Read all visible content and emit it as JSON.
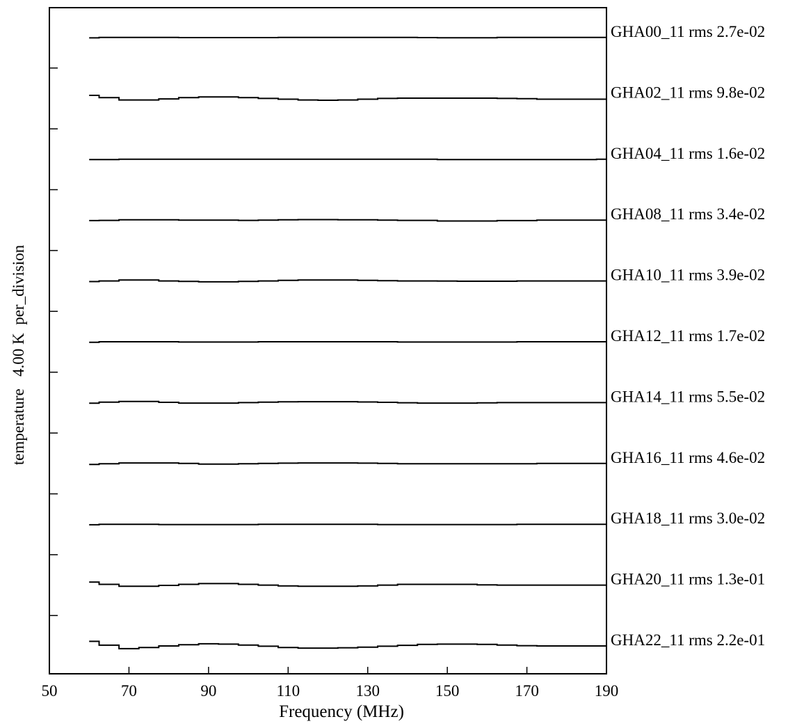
{
  "chart_data": {
    "type": "line",
    "title": "",
    "xlabel": "Frequency (MHz)",
    "ylabel": "temperature   4.00 K  per_division",
    "xlim": [
      50,
      190
    ],
    "x_ticks": [
      50,
      70,
      90,
      110,
      130,
      150,
      170,
      190
    ],
    "y_scale_K_per_division": 4.0,
    "grid": false,
    "legend": "right-side labels per trace",
    "line_color": "#000000",
    "x": [
      60,
      65,
      70,
      75,
      80,
      85,
      90,
      95,
      100,
      105,
      110,
      115,
      120,
      125,
      130,
      135,
      140,
      145,
      150,
      155,
      160,
      165,
      170,
      175,
      180,
      185,
      190
    ],
    "series": [
      {
        "name": "GHA00_11 rms 2.7e-02",
        "values": [
          -0.02,
          0.01,
          0.01,
          0.01,
          0.01,
          0.0,
          0.0,
          0.0,
          0.0,
          0.0,
          0.01,
          0.01,
          0.01,
          0.01,
          0.01,
          0.01,
          0.01,
          0.0,
          -0.01,
          -0.01,
          -0.01,
          0.01,
          0.01,
          0.01,
          0.01,
          0.01,
          0.01
        ]
      },
      {
        "name": "GHA02_11 rms 9.8e-02",
        "values": [
          0.2,
          0.05,
          -0.1,
          -0.1,
          -0.03,
          0.05,
          0.1,
          0.1,
          0.05,
          0.0,
          -0.05,
          -0.1,
          -0.12,
          -0.1,
          -0.05,
          0.0,
          0.02,
          0.02,
          0.02,
          0.02,
          0.02,
          0.0,
          -0.02,
          -0.05,
          -0.05,
          -0.05,
          -0.05
        ]
      },
      {
        "name": "GHA04_11 rms 1.6e-02",
        "values": [
          -0.02,
          -0.02,
          0.0,
          0.0,
          0.0,
          0.0,
          0.0,
          0.0,
          0.0,
          0.0,
          0.0,
          0.0,
          0.0,
          0.0,
          0.0,
          0.0,
          0.0,
          0.0,
          -0.02,
          -0.02,
          -0.02,
          -0.02,
          -0.02,
          -0.02,
          -0.02,
          -0.02,
          0.0
        ]
      },
      {
        "name": "GHA08_11 rms 3.4e-02",
        "values": [
          -0.03,
          -0.02,
          0.02,
          0.02,
          0.02,
          0.0,
          0.0,
          0.0,
          -0.02,
          0.0,
          0.02,
          0.03,
          0.03,
          0.02,
          0.02,
          0.0,
          -0.02,
          -0.02,
          -0.06,
          -0.06,
          -0.06,
          -0.03,
          -0.03,
          0.0,
          0.0,
          0.0,
          0.0
        ]
      },
      {
        "name": "GHA10_11 rms 3.9e-02",
        "values": [
          -0.04,
          0.0,
          0.06,
          0.06,
          0.0,
          -0.03,
          -0.06,
          -0.06,
          -0.03,
          0.0,
          0.04,
          0.06,
          0.06,
          0.06,
          0.04,
          0.02,
          0.0,
          0.0,
          -0.01,
          -0.02,
          -0.02,
          -0.02,
          0.0,
          0.0,
          0.0,
          0.0,
          0.0
        ]
      },
      {
        "name": "GHA12_11 rms 1.7e-02",
        "values": [
          -0.03,
          0.0,
          0.0,
          0.0,
          0.0,
          -0.02,
          -0.02,
          -0.02,
          -0.02,
          0.0,
          0.0,
          0.0,
          0.0,
          0.0,
          0.0,
          0.0,
          -0.02,
          -0.02,
          -0.02,
          -0.02,
          -0.02,
          -0.02,
          0.0,
          0.0,
          0.0,
          0.0,
          0.0
        ]
      },
      {
        "name": "GHA14_11 rms 5.5e-02",
        "values": [
          -0.04,
          0.03,
          0.08,
          0.08,
          0.02,
          -0.03,
          -0.03,
          -0.03,
          0.0,
          0.03,
          0.05,
          0.06,
          0.06,
          0.06,
          0.04,
          0.02,
          -0.01,
          -0.03,
          -0.03,
          -0.03,
          -0.02,
          0.0,
          0.0,
          0.0,
          0.0,
          0.0,
          0.0
        ]
      },
      {
        "name": "GHA16_11 rms 4.6e-02",
        "values": [
          -0.07,
          -0.02,
          0.03,
          0.03,
          0.03,
          0.0,
          -0.04,
          -0.04,
          -0.02,
          0.0,
          0.02,
          0.03,
          0.03,
          0.03,
          0.02,
          0.0,
          -0.02,
          -0.02,
          -0.02,
          -0.02,
          -0.02,
          -0.02,
          -0.02,
          0.0,
          0.0,
          0.0,
          0.0
        ]
      },
      {
        "name": "GHA18_11 rms 3.0e-02",
        "values": [
          -0.03,
          0.0,
          0.0,
          0.0,
          -0.02,
          -0.02,
          -0.02,
          -0.02,
          -0.02,
          0.0,
          0.0,
          0.0,
          0.0,
          0.0,
          0.0,
          -0.02,
          -0.02,
          -0.02,
          -0.02,
          -0.02,
          -0.02,
          -0.02,
          0.0,
          0.0,
          0.0,
          0.0,
          0.0
        ]
      },
      {
        "name": "GHA20_11 rms 1.3e-01",
        "values": [
          0.2,
          0.05,
          -0.08,
          -0.08,
          -0.02,
          0.05,
          0.1,
          0.1,
          0.05,
          0.0,
          -0.05,
          -0.08,
          -0.08,
          -0.08,
          -0.05,
          0.0,
          0.05,
          0.05,
          0.05,
          0.05,
          0.02,
          0.0,
          0.0,
          0.0,
          0.0,
          0.0,
          0.0
        ]
      },
      {
        "name": "GHA22_11 rms 2.2e-01",
        "values": [
          0.3,
          0.05,
          -0.18,
          -0.1,
          0.0,
          0.08,
          0.14,
          0.12,
          0.06,
          -0.02,
          -0.1,
          -0.14,
          -0.14,
          -0.12,
          -0.08,
          -0.02,
          0.04,
          0.1,
          0.12,
          0.12,
          0.1,
          0.06,
          0.02,
          0.0,
          0.0,
          0.0,
          0.0
        ]
      }
    ]
  }
}
